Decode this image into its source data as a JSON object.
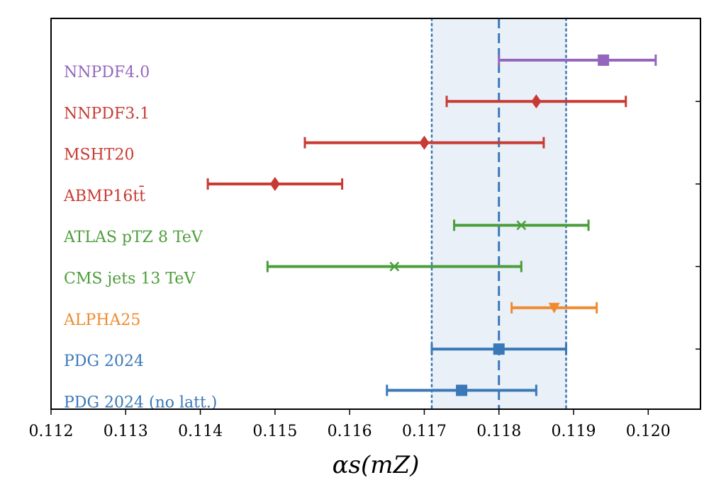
{
  "chart_data": {
    "type": "scatter",
    "subtype": "horizontal-errorbar",
    "xlabel": "αs(mZ)",
    "xlim": [
      0.112,
      0.1207
    ],
    "xticks": [
      "0.112",
      "0.113",
      "0.114",
      "0.115",
      "0.116",
      "0.117",
      "0.118",
      "0.119",
      "0.120"
    ],
    "grid": false,
    "reference": {
      "center": 0.118,
      "low": 0.1171,
      "high": 0.1189
    },
    "series": [
      {
        "name": "NNPDF4.0",
        "value": 0.1194,
        "low": 0.118,
        "high": 0.1201,
        "color": "#9467bd",
        "marker": "square"
      },
      {
        "name": "NNPDF3.1",
        "value": 0.1185,
        "low": 0.1173,
        "high": 0.1197,
        "color": "#c83a33",
        "marker": "diamond"
      },
      {
        "name": "MSHT20",
        "value": 0.117,
        "low": 0.1154,
        "high": 0.1186,
        "color": "#c83a33",
        "marker": "diamond"
      },
      {
        "name": "ABMP16tt̄",
        "value": 0.115,
        "low": 0.1141,
        "high": 0.1159,
        "color": "#c83a33",
        "marker": "diamond"
      },
      {
        "name": "ATLAS pTZ 8 TeV",
        "value": 0.1183,
        "low": 0.1174,
        "high": 0.1192,
        "color": "#4c9e3a",
        "marker": "x"
      },
      {
        "name": "CMS jets 13 TeV",
        "value": 0.1166,
        "low": 0.1149,
        "high": 0.1183,
        "color": "#4c9e3a",
        "marker": "x"
      },
      {
        "name": "ALPHA25",
        "value": 0.11874,
        "low": 0.11817,
        "high": 0.11931,
        "color": "#f08a2e",
        "marker": "triangle-down"
      },
      {
        "name": "PDG 2024",
        "value": 0.118,
        "low": 0.1171,
        "high": 0.1189,
        "color": "#3a78b8",
        "marker": "square"
      },
      {
        "name": "PDG 2024 (no latt.)",
        "value": 0.1175,
        "low": 0.1165,
        "high": 0.1185,
        "color": "#3a78b8",
        "marker": "square"
      }
    ],
    "colors": {
      "band": "#e9f0f8",
      "reference_line": "#3a78b8"
    }
  }
}
